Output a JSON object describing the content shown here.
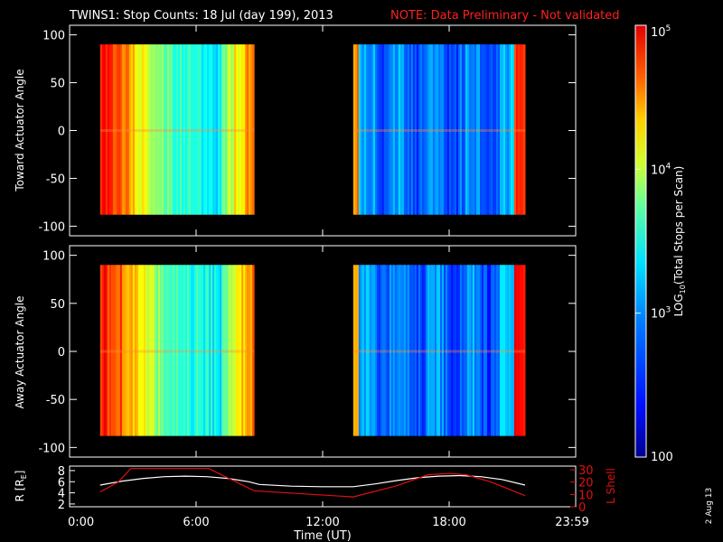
{
  "title": "TWINS1: Stop Counts: 18 Jul (day 199), 2013",
  "note": "NOTE: Data Preliminary - Not validated",
  "side_date": "2 Aug 13",
  "colors": {
    "background": "#000000",
    "foreground": "#ffffff",
    "note": "#ff2020",
    "lshell": "#e01010"
  },
  "chart_data": [
    {
      "type": "heatmap",
      "panel": "toward",
      "ylabel": "Toward Actuator Angle",
      "ylim": [
        -110,
        110
      ],
      "yticks": [
        "100",
        "50",
        "0",
        "-50",
        "-100"
      ],
      "ytick_values": [
        100,
        50,
        0,
        -50,
        -100
      ],
      "xlim_hours": [
        0,
        24
      ],
      "data_blocks_hours": [
        [
          1.45,
          8.75
        ],
        [
          13.45,
          21.6
        ]
      ],
      "angle_range": [
        -88,
        90
      ],
      "grid": false
    },
    {
      "type": "heatmap",
      "panel": "away",
      "ylabel": "Away Actuator Angle",
      "ylim": [
        -110,
        110
      ],
      "yticks": [
        "100",
        "50",
        "0",
        "-50",
        "-100"
      ],
      "ytick_values": [
        100,
        50,
        0,
        -50,
        -100
      ],
      "xlim_hours": [
        0,
        24
      ],
      "data_blocks_hours": [
        [
          1.45,
          8.75
        ],
        [
          13.45,
          21.6
        ]
      ],
      "angle_range": [
        -88,
        90
      ],
      "grid": false
    },
    {
      "type": "line",
      "panel": "ephemeris",
      "xlabel": "Time (UT)",
      "xticks": [
        "0:00",
        "6:00",
        "12:00",
        "18:00",
        "23:59"
      ],
      "xtick_hours": [
        0,
        6,
        12,
        18,
        24
      ],
      "ylabel_left": "R [R",
      "ylabel_left_sub": "E",
      "ylabel_left_end": "]",
      "yticks_left": [
        "8",
        "6",
        "4",
        "2"
      ],
      "ytick_left_values": [
        8,
        6,
        4,
        2
      ],
      "ylim_left": [
        1.5,
        8.8
      ],
      "ylabel_right": "L Shell",
      "yticks_right": [
        "30",
        "20",
        "10",
        "0"
      ],
      "ytick_right_values": [
        30,
        20,
        10,
        0
      ],
      "ylim_right": [
        0,
        33
      ],
      "series": [
        {
          "axis": "left",
          "x": [
            1.45,
            2.5,
            3.5,
            4.5,
            5.5,
            6.5,
            7.5,
            8.5,
            9.0,
            10.5,
            12.0,
            13.45,
            14.5,
            15.5,
            16.5,
            17.5,
            18.5,
            19.5,
            20.5,
            21.6
          ],
          "y": [
            5.4,
            6.1,
            6.6,
            6.9,
            7.0,
            6.9,
            6.6,
            6.0,
            5.5,
            5.2,
            5.1,
            5.1,
            5.6,
            6.2,
            6.7,
            7.0,
            7.1,
            6.9,
            6.4,
            5.4
          ]
        },
        {
          "axis": "right",
          "x": [
            1.45,
            2.3,
            2.9,
            6.6,
            8.75,
            13.45,
            15.5,
            17.0,
            18.0,
            18.8,
            20.0,
            21.6
          ],
          "y": [
            12,
            20,
            31,
            31,
            13,
            8,
            17,
            26,
            27,
            26,
            20,
            9
          ]
        }
      ]
    },
    {
      "type": "heatmap",
      "panel": "colorbar",
      "ylabel": "LOG",
      "ylabel_sub": "10",
      "ylabel_end": "(Total Stops per Scan)",
      "ticks": [
        {
          "base": "10",
          "exp": "5",
          "value": 100000
        },
        {
          "base": "10",
          "exp": "4",
          "value": 10000
        },
        {
          "base": "10",
          "exp": "3",
          "value": 1000
        },
        {
          "base": "100",
          "exp": "",
          "value": 100
        }
      ],
      "range": [
        100,
        100000
      ],
      "scale": "log"
    }
  ]
}
